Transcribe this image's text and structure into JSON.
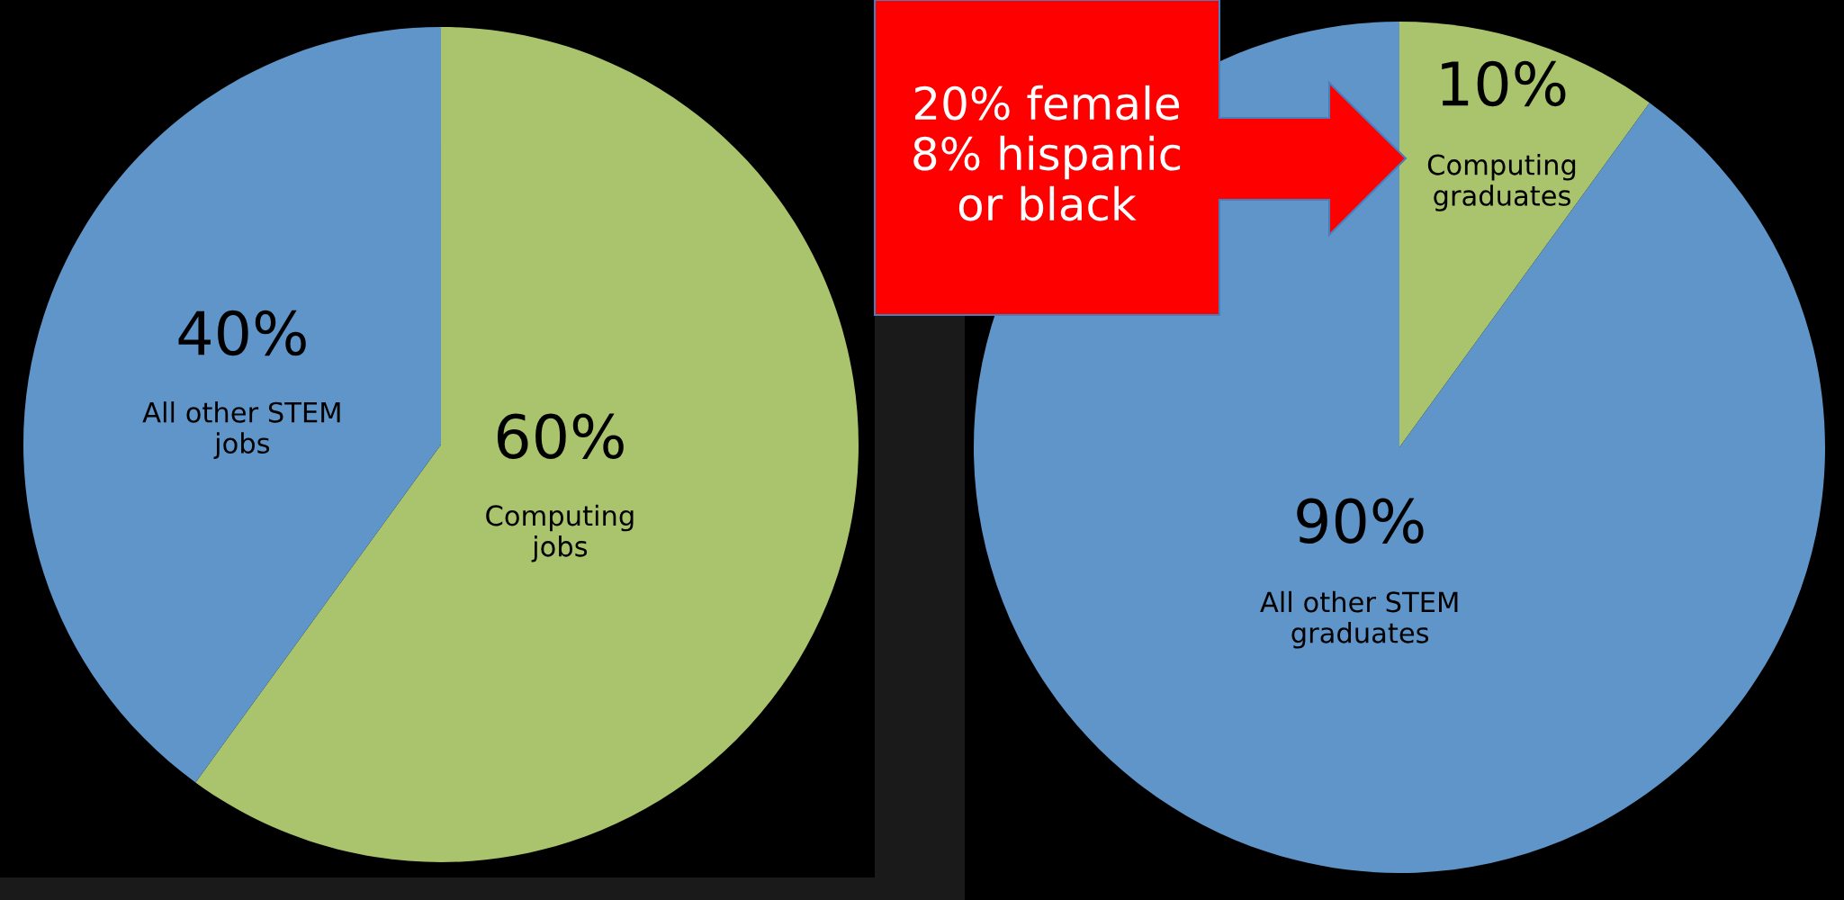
{
  "chart_data": [
    {
      "type": "pie",
      "categories": [
        "Computing jobs",
        "All other STEM jobs"
      ],
      "values": [
        60,
        40
      ],
      "value_labels": [
        "60%",
        "40%"
      ],
      "colors": [
        "#aac46e",
        "#6095c9"
      ]
    },
    {
      "type": "pie",
      "categories": [
        "Computing graduates",
        "All other STEM graduates"
      ],
      "values": [
        10,
        90
      ],
      "value_labels": [
        "10%",
        "90%"
      ],
      "colors": [
        "#aac46e",
        "#6095c9"
      ],
      "annotations": [
        "20% female\n8% hispanic\nor black"
      ]
    }
  ]
}
